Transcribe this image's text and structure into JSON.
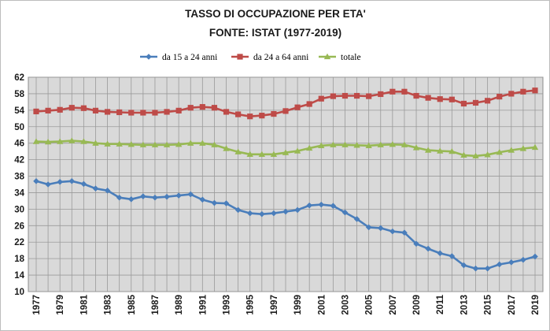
{
  "chart_data": {
    "type": "line",
    "title": "TASSO DI OCCUPAZIONE PER ETA'",
    "subtitle": "FONTE: ISTAT (1977-2019)",
    "xlabel": "",
    "ylabel": "",
    "ylim": [
      10,
      62
    ],
    "yticks": [
      10,
      14,
      18,
      22,
      26,
      30,
      34,
      38,
      42,
      46,
      50,
      54,
      58,
      62
    ],
    "xtick_labels": [
      "1977",
      "1979",
      "1981",
      "1983",
      "1985",
      "1987",
      "1989",
      "1991",
      "1993",
      "1995",
      "1997",
      "1999",
      "2001",
      "2003",
      "2005",
      "2007",
      "2009",
      "2011",
      "2013",
      "2015",
      "2017",
      "2019"
    ],
    "grid": true,
    "legend_position": "top",
    "x": [
      1977,
      1978,
      1979,
      1980,
      1981,
      1982,
      1983,
      1984,
      1985,
      1986,
      1987,
      1988,
      1989,
      1990,
      1991,
      1992,
      1993,
      1994,
      1995,
      1996,
      1997,
      1998,
      1999,
      2000,
      2001,
      2002,
      2003,
      2004,
      2005,
      2006,
      2007,
      2008,
      2009,
      2010,
      2011,
      2012,
      2013,
      2014,
      2015,
      2016,
      2017,
      2018,
      2019
    ],
    "series": [
      {
        "name": "da 15 a 24 anni",
        "color": "#4a7ebb",
        "marker": "diamond",
        "values": [
          36.8,
          36.0,
          36.6,
          36.8,
          36.1,
          35.0,
          34.5,
          32.8,
          32.4,
          33.1,
          32.8,
          33.0,
          33.3,
          33.6,
          32.3,
          31.5,
          31.4,
          29.8,
          29.0,
          28.8,
          29.0,
          29.4,
          29.8,
          30.9,
          31.1,
          30.8,
          29.2,
          27.6,
          25.6,
          25.4,
          24.6,
          24.3,
          21.6,
          20.4,
          19.3,
          18.6,
          16.4,
          15.6,
          15.6,
          16.6,
          17.1,
          17.7,
          18.5
        ]
      },
      {
        "name": "da 24 a 64 anni",
        "color": "#be4b48",
        "marker": "square",
        "values": [
          53.7,
          53.9,
          54.1,
          54.6,
          54.5,
          53.9,
          53.6,
          53.5,
          53.4,
          53.4,
          53.4,
          53.6,
          53.9,
          54.6,
          54.8,
          54.6,
          53.6,
          53.0,
          52.5,
          52.7,
          53.1,
          53.8,
          54.7,
          55.5,
          56.8,
          57.4,
          57.5,
          57.5,
          57.4,
          57.9,
          58.5,
          58.5,
          57.5,
          57.0,
          56.7,
          56.6,
          55.6,
          55.8,
          56.3,
          57.3,
          58.0,
          58.5,
          58.8
        ]
      },
      {
        "name": "totale",
        "color": "#98b954",
        "marker": "triangle",
        "values": [
          46.4,
          46.3,
          46.4,
          46.6,
          46.4,
          46.0,
          45.8,
          45.8,
          45.7,
          45.6,
          45.6,
          45.6,
          45.7,
          46.0,
          46.0,
          45.6,
          44.7,
          43.9,
          43.3,
          43.3,
          43.3,
          43.7,
          44.1,
          44.8,
          45.4,
          45.6,
          45.6,
          45.5,
          45.4,
          45.6,
          45.7,
          45.6,
          44.9,
          44.3,
          44.1,
          44.0,
          43.1,
          42.9,
          43.2,
          43.8,
          44.3,
          44.7,
          45.0
        ]
      }
    ]
  }
}
